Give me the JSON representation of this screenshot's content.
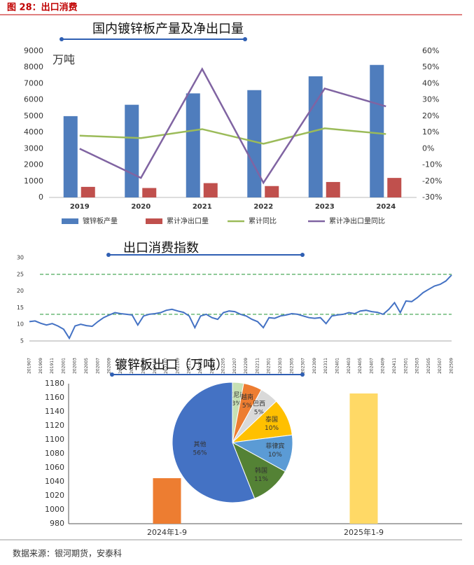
{
  "header": {
    "title": "图 28：出口消费"
  },
  "footer": {
    "source": "数据来源：银河期货，安泰科"
  },
  "chart_data": [
    {
      "type": "combo",
      "title": "国内镀锌板产量及净出口量",
      "unit": "万吨",
      "categories": [
        "2019",
        "2020",
        "2021",
        "2022",
        "2023",
        "2024"
      ],
      "series": [
        {
          "name": "镀锌板产量",
          "type": "bar",
          "color": "#4f7dbd",
          "values": [
            5000,
            5700,
            6400,
            6600,
            7450,
            8150
          ]
        },
        {
          "name": "累计净出口量",
          "type": "bar",
          "color": "#c0504d",
          "values": [
            650,
            580,
            880,
            700,
            950,
            1200
          ]
        },
        {
          "name": "累计同比",
          "type": "line",
          "axis": "y2",
          "color": "#9bbb59",
          "values": [
            8,
            6.5,
            12,
            3,
            12.5,
            9
          ]
        },
        {
          "name": "累计净出口量同比",
          "type": "line",
          "axis": "y2",
          "color": "#8064a2",
          "values": [
            0,
            -18,
            49,
            -21,
            37,
            26
          ]
        }
      ],
      "ylim": [
        0,
        9000
      ],
      "yticks": [
        0,
        1000,
        2000,
        3000,
        4000,
        5000,
        6000,
        7000,
        8000,
        9000
      ],
      "y2lim": [
        -30,
        60
      ],
      "y2ticks": [
        {
          "value": -30,
          "label": "-30%"
        },
        {
          "value": -20,
          "label": "-20%"
        },
        {
          "value": -10,
          "label": "-10%"
        },
        {
          "value": 0,
          "label": "0%"
        },
        {
          "value": 10,
          "label": "10%"
        },
        {
          "value": 20,
          "label": "20%"
        },
        {
          "value": 30,
          "label": "30%"
        },
        {
          "value": 40,
          "label": "40%"
        },
        {
          "value": 50,
          "label": "50%"
        },
        {
          "value": 60,
          "label": "60%"
        }
      ],
      "legend": "bottom",
      "grid": false
    },
    {
      "type": "line",
      "title": "出口消费指数",
      "categories": [
        "201907",
        null,
        "201909",
        null,
        "201911",
        null,
        "202001",
        null,
        "202003",
        null,
        "202005",
        null,
        "202007",
        null,
        "202009",
        null,
        "202011",
        null,
        "202101",
        null,
        "202103",
        null,
        "202105",
        null,
        "202107",
        null,
        "202109",
        null,
        "202111",
        null,
        "202201",
        null,
        "202203",
        null,
        "202205",
        null,
        "202207",
        null,
        "202209",
        null,
        "202211",
        null,
        "202301",
        null,
        "202303",
        null,
        "202305",
        null,
        "202307",
        null,
        "202309",
        null,
        "202311",
        null,
        "202401",
        null,
        "202403",
        null,
        "202405",
        null,
        "202407",
        null,
        "202409",
        null,
        "202411",
        null,
        "202501",
        null,
        "202503",
        null,
        "202505",
        null,
        "202507",
        null,
        "202509"
      ],
      "values": [
        10.8,
        11.0,
        10.3,
        9.8,
        10.2,
        9.5,
        8.5,
        5.8,
        9.5,
        10.0,
        9.6,
        9.4,
        10.8,
        12.0,
        12.8,
        13.5,
        13.2,
        13.0,
        12.8,
        9.8,
        12.5,
        13.0,
        13.2,
        13.5,
        14.2,
        14.5,
        14.0,
        13.6,
        12.5,
        9.0,
        12.5,
        13.0,
        12.0,
        11.5,
        13.5,
        14.0,
        13.8,
        13.0,
        12.5,
        11.5,
        10.8,
        9.0,
        12.0,
        11.8,
        12.5,
        12.8,
        13.2,
        13.0,
        12.5,
        12.0,
        11.8,
        12.0,
        10.2,
        12.5,
        12.8,
        13.0,
        13.5,
        13.2,
        14.0,
        14.2,
        13.8,
        13.6,
        13.0,
        14.5,
        16.5,
        13.5,
        17.0,
        16.8,
        18.0,
        19.5,
        20.5,
        21.5,
        22.0,
        23.0,
        24.8
      ],
      "color": "#4472c4",
      "reference_lines": [
        25,
        13
      ],
      "reference_color": "#3aa04a",
      "ylim": [
        5,
        30
      ],
      "yticks": [
        5,
        10,
        15,
        20,
        25,
        30
      ],
      "grid": false
    },
    {
      "type": "bar",
      "title": "镀锌板出口（万吨）",
      "categories": [
        "2024年1-9",
        "2025年1-9"
      ],
      "values": [
        1045,
        1166
      ],
      "colors": [
        "#ed7d31",
        "#ffd966"
      ],
      "ylim": [
        980,
        1180
      ],
      "yticks": [
        980,
        1000,
        1020,
        1040,
        1060,
        1080,
        1100,
        1120,
        1140,
        1160,
        1180
      ],
      "grid": false
    },
    {
      "type": "pie",
      "categories": [
        "印度尼西亚",
        "越南",
        "巴西",
        "泰国",
        "菲律宾",
        "韩国",
        "其他"
      ],
      "values": [
        3,
        5,
        5,
        10,
        10,
        11,
        56
      ],
      "value_labels": [
        "3%",
        "5%",
        "5%",
        "10%",
        "10%",
        "11%",
        "56%"
      ],
      "colors": [
        "#c6e0b4",
        "#ed7d31",
        "#d9d9d9",
        "#ffc000",
        "#5b9bd5",
        "#548235",
        "#4472c4"
      ]
    }
  ]
}
